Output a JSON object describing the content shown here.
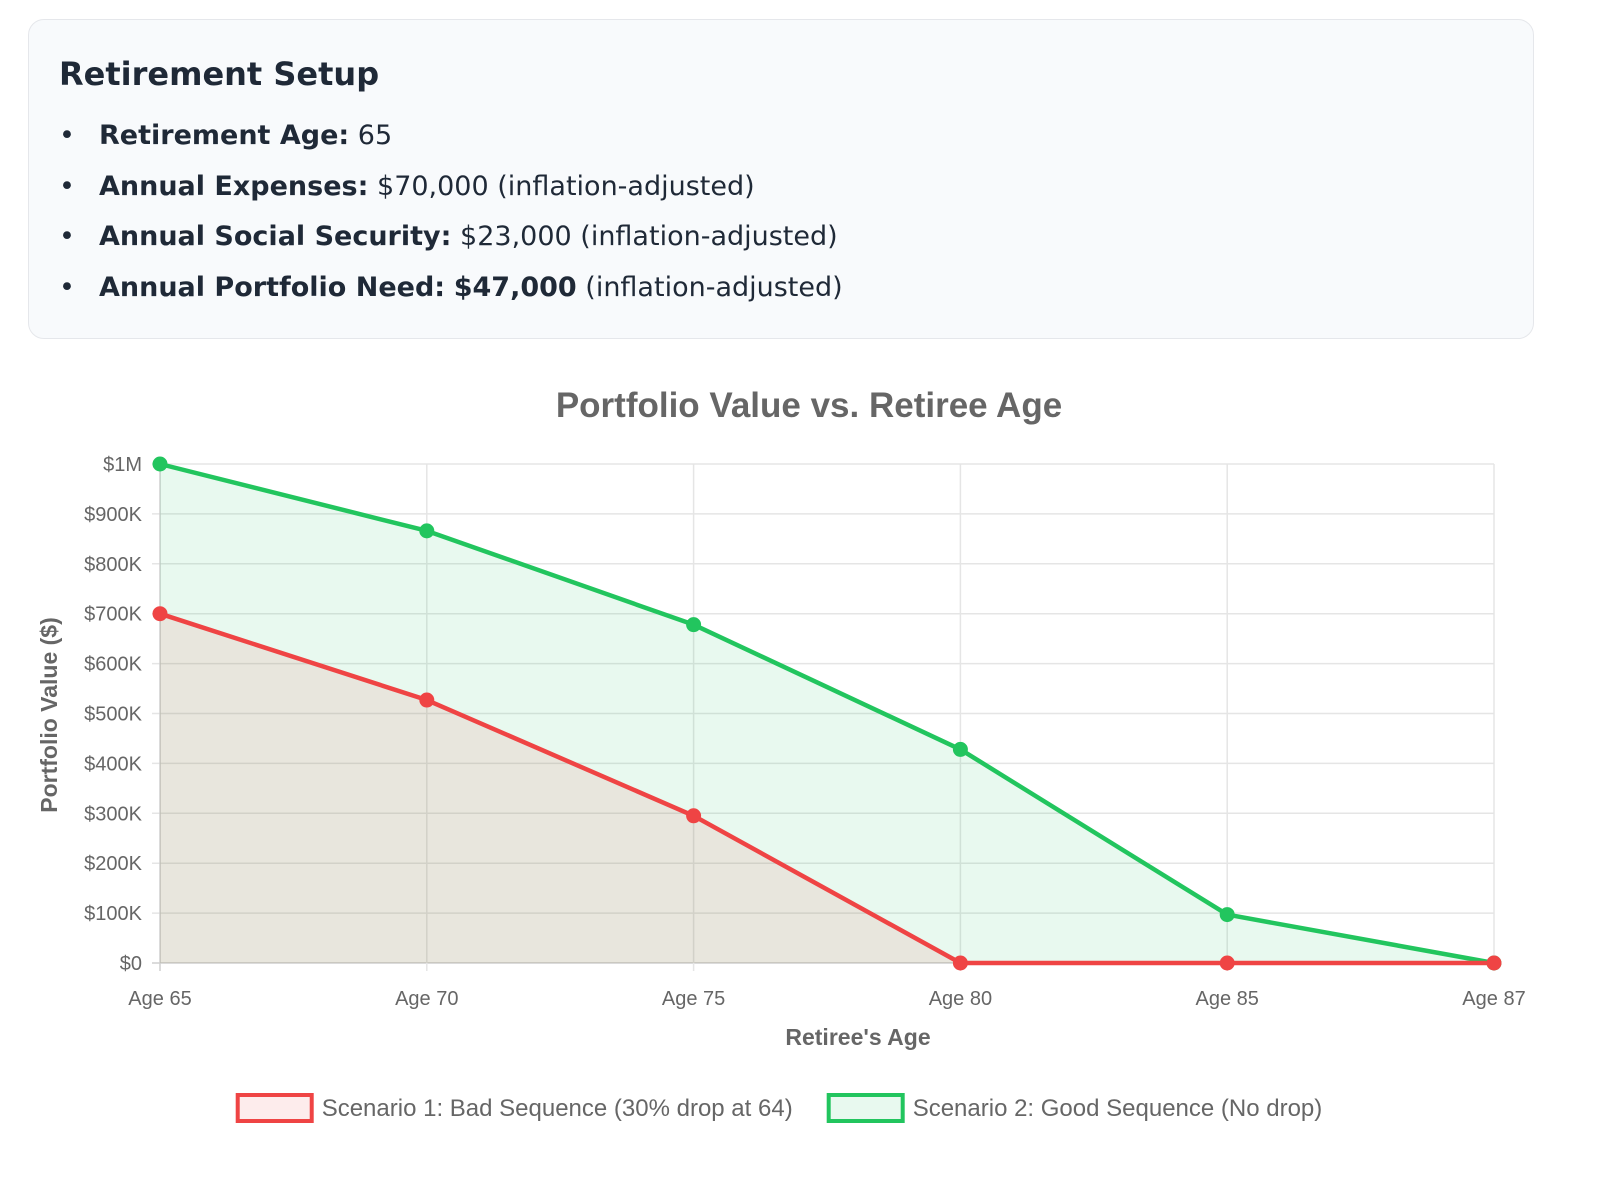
{
  "setup": {
    "title": "Retirement Setup",
    "items": [
      {
        "label": "Retirement Age:",
        "value": "65",
        "value_bold": "",
        "suffix": ""
      },
      {
        "label": "Annual Expenses:",
        "value": "$70,000",
        "value_bold": "",
        "suffix": "(inflation-adjusted)"
      },
      {
        "label": "Annual Social Security:",
        "value": "$23,000",
        "value_bold": "",
        "suffix": "(inflation-adjusted)"
      },
      {
        "label": "Annual Portfolio Need:",
        "value": "",
        "value_bold": "$47,000",
        "suffix": "(inflation-adjusted)"
      }
    ]
  },
  "chart_data": {
    "type": "area",
    "title": "Portfolio Value vs. Retiree Age",
    "xlabel": "Retiree's Age",
    "ylabel": "Portfolio Value ($)",
    "categories": [
      "Age 65",
      "Age 70",
      "Age 75",
      "Age 80",
      "Age 85",
      "Age 87"
    ],
    "ylim": [
      0,
      1000000
    ],
    "yticks": [
      {
        "value": 0,
        "label": "$0"
      },
      {
        "value": 100000,
        "label": "$100K"
      },
      {
        "value": 200000,
        "label": "$200K"
      },
      {
        "value": 300000,
        "label": "$300K"
      },
      {
        "value": 400000,
        "label": "$400K"
      },
      {
        "value": 500000,
        "label": "$500K"
      },
      {
        "value": 600000,
        "label": "$600K"
      },
      {
        "value": 700000,
        "label": "$700K"
      },
      {
        "value": 800000,
        "label": "$800K"
      },
      {
        "value": 900000,
        "label": "$900K"
      },
      {
        "value": 1000000,
        "label": "$1M"
      }
    ],
    "grid": true,
    "legend_position": "bottom",
    "series": [
      {
        "name": "Scenario 1: Bad Sequence (30% drop at 64)",
        "color": "#ef4444",
        "fill": "rgba(239, 68, 68, 0.10)",
        "values": [
          700000,
          527000,
          295000,
          0,
          0,
          0
        ]
      },
      {
        "name": "Scenario 2: Good Sequence (No drop)",
        "color": "#22c55e",
        "fill": "rgba(34, 197, 94, 0.10)",
        "values": [
          1000000,
          866000,
          678000,
          428000,
          97000,
          0
        ]
      }
    ]
  }
}
